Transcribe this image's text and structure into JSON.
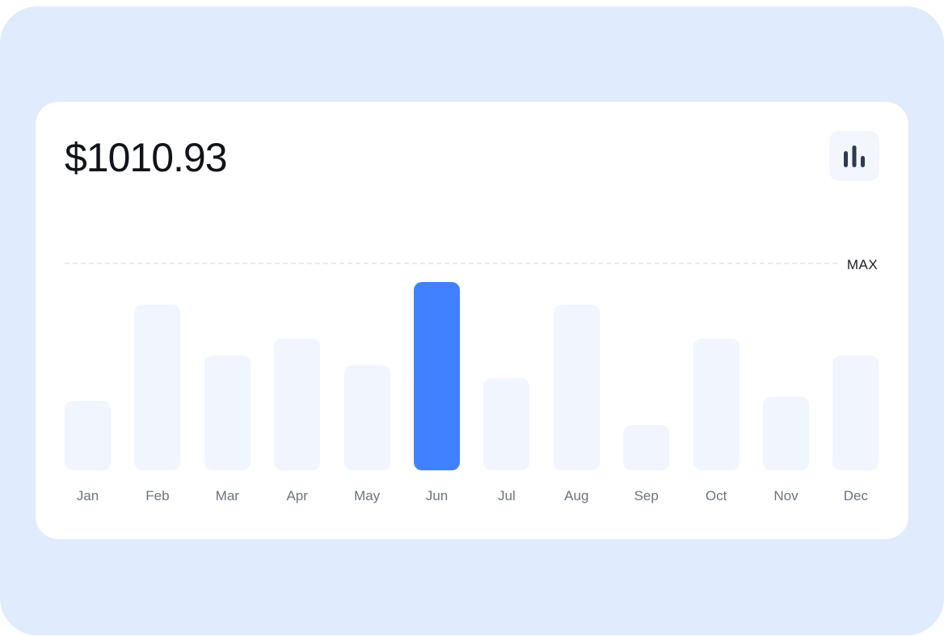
{
  "header": {
    "amount": "$1010.93",
    "chart_icon": "bar-chart-icon"
  },
  "max_label": "MAX",
  "colors": {
    "backdrop": "#e0ebfd",
    "bar": "#f0f5fe",
    "bar_active": "#4181ff",
    "icon": "#2b3a55"
  },
  "chart_data": {
    "type": "bar",
    "title": "",
    "xlabel": "",
    "ylabel": "",
    "categories": [
      "Jan",
      "Feb",
      "Mar",
      "Apr",
      "May",
      "Jun",
      "Jul",
      "Aug",
      "Sep",
      "Oct",
      "Nov",
      "Dec"
    ],
    "values": [
      37,
      88,
      61,
      70,
      56,
      100,
      49,
      88,
      24,
      70,
      39,
      61
    ],
    "ylim": [
      0,
      100
    ],
    "highlighted": "Jun",
    "reference_line": "MAX",
    "grid": false
  }
}
